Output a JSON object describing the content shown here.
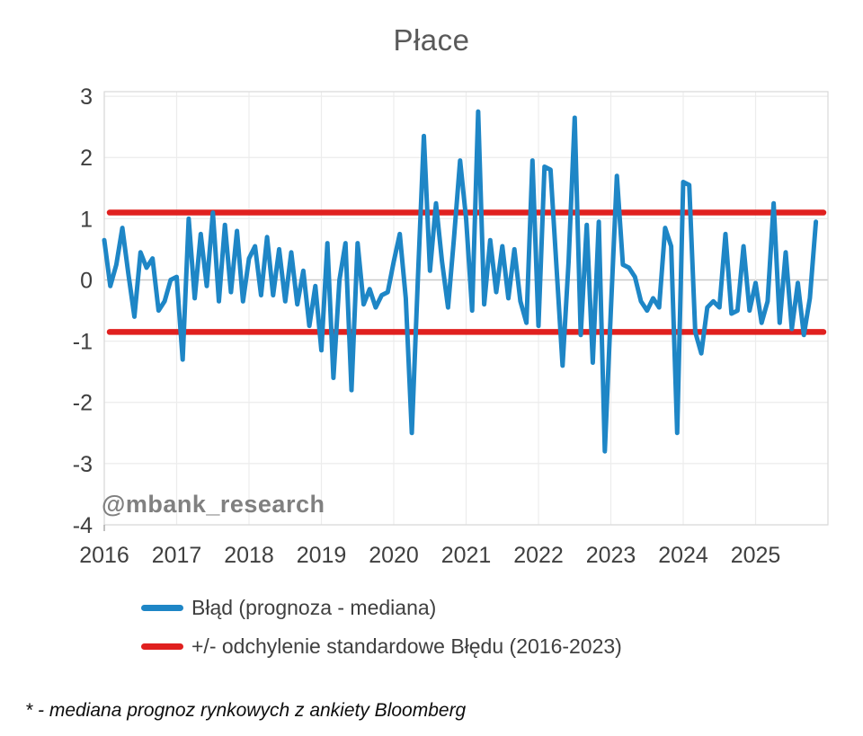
{
  "title": "Płace",
  "watermark": "@mbank_research",
  "footnote": "* - mediana prognoz rynkowych z ankiety Bloomberg",
  "legend": [
    {
      "label": "Błąd (prognoza - mediana)",
      "color": "#1e86c6"
    },
    {
      "label": "+/- odchylenie standardowe Błędu (2016-2023)",
      "color": "#e0201f"
    }
  ],
  "colors": {
    "series_blue": "#1e86c6",
    "band_red": "#e0201f",
    "grid": "#ececec",
    "zero_line": "#c9c9c9",
    "plot_border": "#d9d9d9",
    "axis_text": "#3f3f3f",
    "title_text": "#595959",
    "watermark_text": "#808080"
  },
  "chart_data": {
    "type": "line",
    "title": "Płace",
    "x_tick_labels": [
      "2016",
      "2017",
      "2018",
      "2019",
      "2020",
      "2021",
      "2022",
      "2023",
      "2024",
      "2025"
    ],
    "points_per_year": 12,
    "y_ticks": [
      3,
      2,
      1,
      0,
      -1,
      -2,
      -3,
      -4
    ],
    "ylim": [
      -4,
      3.075
    ],
    "grid": true,
    "legend_position": "bottom",
    "series": [
      {
        "name": "Błąd (prognoza - mediana)",
        "type": "line",
        "color": "#1e86c6",
        "values": [
          0.65,
          -0.1,
          0.25,
          0.85,
          0.1,
          -0.6,
          0.45,
          0.2,
          0.35,
          -0.5,
          -0.35,
          0.0,
          0.05,
          -1.3,
          1.0,
          -0.3,
          0.75,
          -0.1,
          1.1,
          -0.35,
          0.9,
          -0.2,
          0.8,
          -0.35,
          0.35,
          0.55,
          -0.25,
          0.7,
          -0.25,
          0.5,
          -0.35,
          0.45,
          -0.4,
          0.15,
          -0.75,
          -0.1,
          -1.15,
          0.6,
          -1.6,
          0.0,
          0.6,
          -1.8,
          0.6,
          -0.4,
          -0.15,
          -0.45,
          -0.25,
          -0.2,
          0.3,
          0.75,
          -0.3,
          -2.5,
          0.0,
          2.35,
          0.15,
          1.25,
          0.3,
          -0.45,
          0.7,
          1.95,
          1.0,
          -0.5,
          2.75,
          -0.4,
          0.65,
          -0.2,
          0.55,
          -0.3,
          0.5,
          -0.35,
          -0.7,
          1.95,
          -0.75,
          1.85,
          1.8,
          0.2,
          -1.4,
          0.3,
          2.65,
          -0.9,
          0.9,
          -1.35,
          0.95,
          -2.8,
          -0.5,
          1.7,
          0.25,
          0.2,
          0.05,
          -0.35,
          -0.5,
          -0.3,
          -0.45,
          0.85,
          0.55,
          -2.5,
          1.6,
          1.55,
          -0.85,
          -1.2,
          -0.45,
          -0.35,
          -0.45,
          0.75,
          -0.55,
          -0.5,
          0.55,
          -0.5,
          -0.05,
          -0.7,
          -0.35,
          1.25,
          -0.7,
          0.45,
          -0.8,
          -0.05,
          -0.9,
          -0.3,
          0.95
        ]
      },
      {
        "name": "+/- odchylenie standardowe Błędu (2016-2023)",
        "type": "hlines",
        "color": "#e0201f",
        "values": [
          1.1,
          -0.85
        ]
      }
    ]
  }
}
